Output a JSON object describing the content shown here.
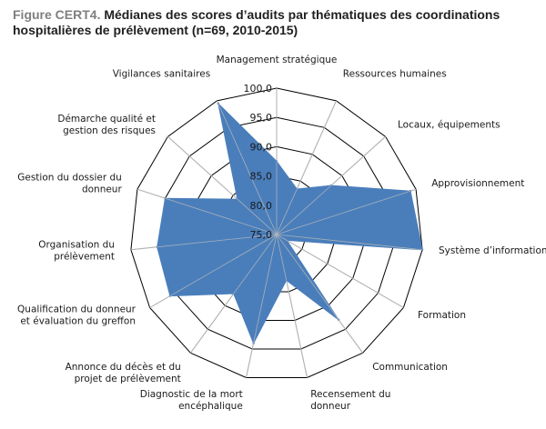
{
  "figure": {
    "label": "Figure CERT4.",
    "title": "Médianes des scores d’audits par thématiques des coordinations hospitalières de prélèvement (n=69, 2010-2015)"
  },
  "chart_data": {
    "type": "radar",
    "title": "Médianes des scores d’audits par thématiques des coordinations hospitalières de prélèvement (n=69, 2010-2015)",
    "rlim": [
      75,
      100
    ],
    "ticks": [
      75,
      80,
      85,
      90,
      95,
      100
    ],
    "tick_labels": [
      "75,0",
      "80,0",
      "85,0",
      "90,0",
      "95,0",
      "100,0"
    ],
    "grid": true,
    "legend": "none",
    "series_color": "#4a7ebb",
    "categories": [
      [
        "Management stratégique"
      ],
      [
        "Ressources humaines"
      ],
      [
        "Locaux, équipements"
      ],
      [
        "Approvisionnement"
      ],
      [
        "Système d’information"
      ],
      [
        "Formation"
      ],
      [
        "Communication"
      ],
      [
        "Recensement du",
        "donneur"
      ],
      [
        "Diagnostic de la mort",
        "encéphalique"
      ],
      [
        "Annonce du décès et du",
        "projet de prélèvement"
      ],
      [
        "Qualification du donneur",
        "et évaluation du greffon"
      ],
      [
        "Organisation du",
        "prélèvement"
      ],
      [
        "Gestion du dossier du",
        "donneur"
      ],
      [
        "Démarche qualité et",
        "gestion des risques"
      ],
      [
        "Vigilances sanitaires"
      ]
    ],
    "series": [
      {
        "values": [
          87.5,
          83.5,
          87.5,
          99.0,
          100.0,
          77.0,
          93.0,
          83.0,
          94.0,
          87.5,
          96.0,
          95.5,
          95.0,
          84.0,
          99.5
        ]
      }
    ]
  }
}
